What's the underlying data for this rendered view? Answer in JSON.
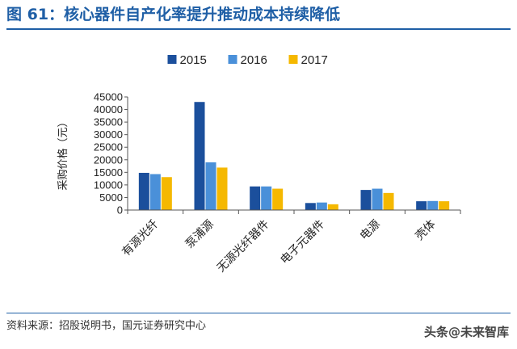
{
  "header": {
    "title": "图 61：核心器件自产化率提升推动成本持续降低"
  },
  "footer": {
    "source": "资料来源：招股说明书，国元证券研究中心",
    "watermark": "头条@未来智库"
  },
  "chart_data": {
    "type": "bar",
    "categories": [
      "有源光纤",
      "泵浦源",
      "无源光纤器件",
      "电子元器件",
      "电源",
      "壳体"
    ],
    "series": [
      {
        "name": "2015",
        "color": "#1b4f9c",
        "values": [
          14800,
          43000,
          9400,
          2800,
          8000,
          3500
        ]
      },
      {
        "name": "2016",
        "color": "#4a90d9",
        "values": [
          14300,
          19000,
          9400,
          3000,
          8500,
          3600
        ]
      },
      {
        "name": "2017",
        "color": "#f5b800",
        "values": [
          13100,
          16900,
          8500,
          2300,
          6800,
          3500
        ]
      }
    ],
    "ylabel": "采购价格（元）",
    "ylim": [
      0,
      45000
    ],
    "yticks": [
      0,
      5000,
      10000,
      15000,
      20000,
      25000,
      30000,
      35000,
      40000,
      45000
    ],
    "legend_position": "top-center",
    "grid": false
  }
}
